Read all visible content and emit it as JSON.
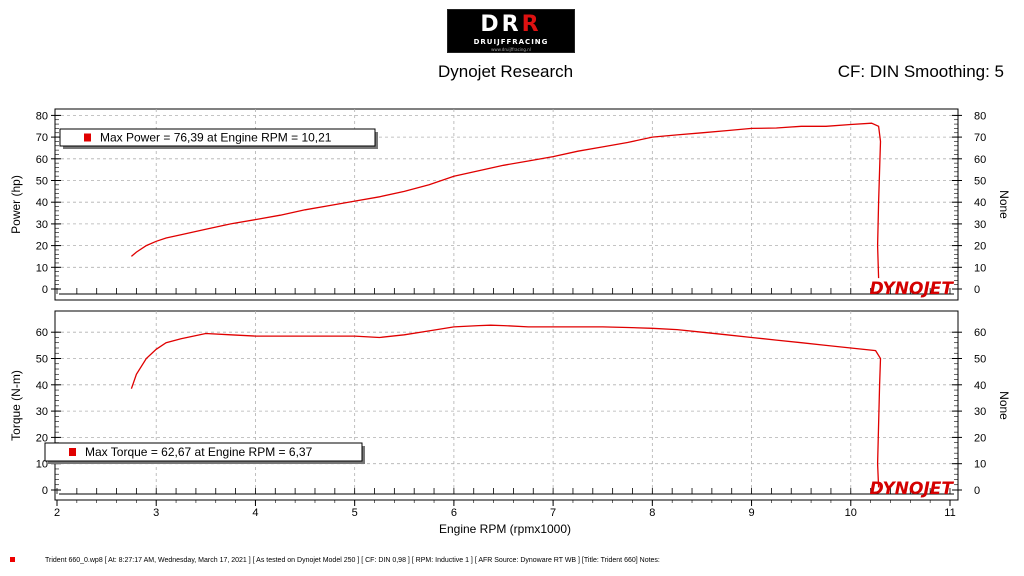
{
  "header": {
    "logo": {
      "text_a": "DR",
      "text_b": "R",
      "subtitle": "DRUIJFFRACING",
      "url": "www.druijffracing.nl"
    },
    "title": "Dynojet Research",
    "cf_info": "CF: DIN Smoothing: 5"
  },
  "footer": {
    "text": "Trident 660_0.wp8 [ At: 8:27:17 AM, Wednesday, March 17, 2021 ] [ As tested on Dynojet Model 250 ] [ CF: DIN 0,98 ] [ RPM: Inductive 1 ] [ AFR Source: Dynoware RT WB ] [Title: Trident 660]   Notes:"
  },
  "colors": {
    "series": "#e00000",
    "grid": "#b0b0b0",
    "brand": "#d40000"
  },
  "chart_data": [
    {
      "type": "line",
      "ylabel": "Power (hp)",
      "ylabel_right": "None",
      "ylim": [
        0,
        80
      ],
      "yticks": [
        0,
        10,
        20,
        30,
        40,
        50,
        60,
        70,
        80
      ],
      "xlim": [
        2,
        11
      ],
      "grid": true,
      "legend": "Max Power = 76,39 at Engine RPM = 10,21",
      "watermark": "DYNOJET",
      "series": [
        {
          "x": [
            2.75,
            2.8,
            2.9,
            3.0,
            3.1,
            3.25,
            3.5,
            3.75,
            4.0,
            4.25,
            4.5,
            4.75,
            5.0,
            5.25,
            5.5,
            5.75,
            6.0,
            6.25,
            6.5,
            6.75,
            7.0,
            7.25,
            7.5,
            7.75,
            8.0,
            8.25,
            8.5,
            8.75,
            9.0,
            9.25,
            9.5,
            9.75,
            10.0,
            10.21,
            10.28,
            10.3,
            10.29,
            10.28,
            10.27,
            10.28
          ],
          "y": [
            15,
            17,
            20,
            22,
            23.5,
            25,
            27.5,
            30,
            32,
            34,
            36.5,
            38.5,
            40.5,
            42.5,
            45,
            48,
            52,
            54.5,
            57,
            59,
            61,
            63.5,
            65.5,
            67.5,
            70,
            71,
            72,
            73,
            74,
            74.2,
            75,
            75,
            75.8,
            76.39,
            75,
            68,
            55,
            40,
            20,
            5
          ]
        }
      ]
    },
    {
      "type": "line",
      "ylabel": "Torque (N-m)",
      "ylabel_right": "None",
      "ylim": [
        0,
        60
      ],
      "yticks": [
        0,
        10,
        20,
        30,
        40,
        50,
        60
      ],
      "xlim": [
        2,
        11
      ],
      "xlabel": "Engine RPM (rpmx1000)",
      "xticks": [
        2,
        3,
        4,
        5,
        6,
        7,
        8,
        9,
        10,
        11
      ],
      "grid": true,
      "legend": "Max Torque = 62,67 at Engine RPM = 6,37",
      "watermark": "DYNOJET",
      "series": [
        {
          "x": [
            2.75,
            2.8,
            2.9,
            3.0,
            3.1,
            3.25,
            3.5,
            3.75,
            4.0,
            4.5,
            5.0,
            5.25,
            5.5,
            5.75,
            6.0,
            6.25,
            6.37,
            6.5,
            6.75,
            7.0,
            7.25,
            7.5,
            7.75,
            8.0,
            8.25,
            8.5,
            8.75,
            9.0,
            9.25,
            9.5,
            9.75,
            10.0,
            10.25,
            10.3,
            10.29,
            10.28,
            10.27,
            10.28
          ],
          "y": [
            38.5,
            44,
            50,
            53.5,
            56,
            57.5,
            59.5,
            59,
            58.5,
            58.5,
            58.5,
            58,
            59,
            60.5,
            62,
            62.5,
            62.67,
            62.5,
            62,
            62,
            62,
            62,
            61.8,
            61.5,
            61,
            60,
            59,
            58,
            57,
            56,
            55,
            54,
            53,
            50,
            40,
            25,
            10,
            1
          ]
        }
      ]
    }
  ]
}
